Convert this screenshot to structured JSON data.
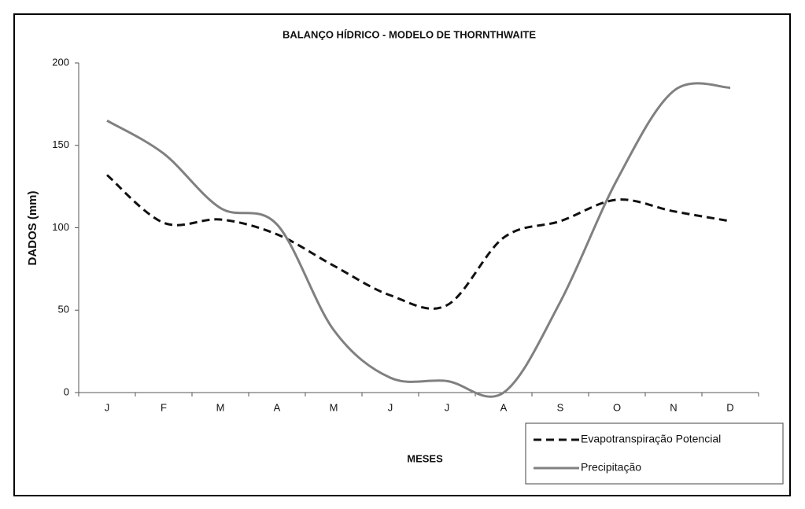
{
  "chart_data": {
    "type": "line",
    "title": "BALANÇO HÍDRICO - MODELO DE THORNTHWAITE",
    "x_label": "MESES",
    "y_label": "DADOS (mm)",
    "categories": [
      "J",
      "F",
      "M",
      "A",
      "M",
      "J",
      "J",
      "A",
      "S",
      "O",
      "N",
      "D"
    ],
    "series": [
      {
        "name": "Evapotranspiração Potencial",
        "color": "#111111",
        "style": "dashed",
        "values": [
          132,
          103,
          105,
          96,
          77,
          59,
          53,
          94,
          104,
          117,
          110,
          104
        ]
      },
      {
        "name": "Precipitação",
        "color": "#808080",
        "style": "solid",
        "values": [
          165,
          145,
          112,
          102,
          38,
          9,
          7,
          0,
          55,
          129,
          183,
          185
        ]
      }
    ],
    "ylim": [
      0,
      200
    ],
    "yticks": [
      0,
      50,
      100,
      150,
      200
    ],
    "grid": false,
    "smooth": true,
    "legend": "bottom-right"
  }
}
